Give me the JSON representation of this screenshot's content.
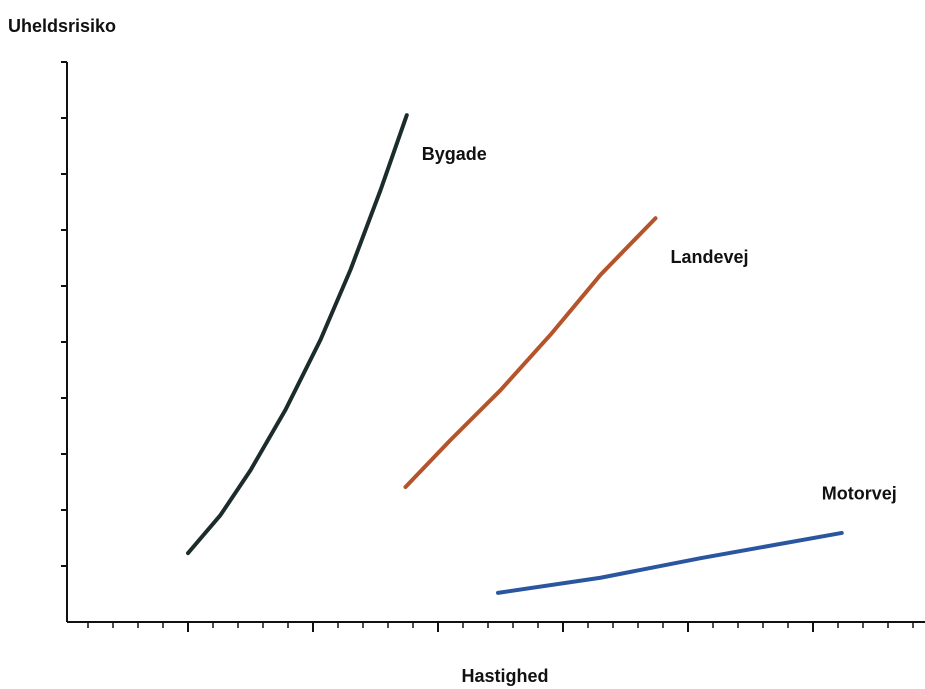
{
  "chart_data": {
    "type": "line",
    "y_label": "Uheldsrisiko",
    "x_label": "Hastighed",
    "xlim": [
      0,
      6.9
    ],
    "ylim": [
      0,
      10
    ],
    "xticks": [
      1,
      2,
      3,
      4,
      5,
      6
    ],
    "xminorticks": [
      0.2,
      0.4,
      0.6,
      0.8,
      1.2,
      1.4,
      1.6,
      1.8,
      2.2,
      2.4,
      2.6,
      2.8,
      3.2,
      3.4,
      3.6,
      3.8,
      4.2,
      4.4,
      4.6,
      4.8,
      5.2,
      5.4,
      5.6,
      5.8,
      6.2,
      6.4,
      6.6,
      6.8
    ],
    "yticks": [
      1,
      2,
      3,
      4,
      5,
      6,
      7,
      8,
      9,
      10
    ],
    "series": [
      {
        "name": "Bygade",
        "color": "#1c2b2b",
        "x": [
          1.0,
          1.26,
          1.5,
          1.78,
          2.06,
          2.3,
          2.54,
          2.75
        ],
        "values": [
          1.23,
          1.91,
          2.71,
          3.79,
          5.04,
          6.29,
          7.71,
          9.05
        ]
      },
      {
        "name": "Landevej",
        "color": "#b5532a",
        "x": [
          2.74,
          3.1,
          3.5,
          3.9,
          4.3,
          4.74
        ],
        "values": [
          2.41,
          3.25,
          4.14,
          5.13,
          6.2,
          7.21
        ]
      },
      {
        "name": "Motorvej",
        "color": "#2a56a0",
        "x": [
          3.48,
          4.3,
          5.1,
          6.23
        ],
        "values": [
          0.52,
          0.79,
          1.14,
          1.59
        ]
      }
    ]
  }
}
